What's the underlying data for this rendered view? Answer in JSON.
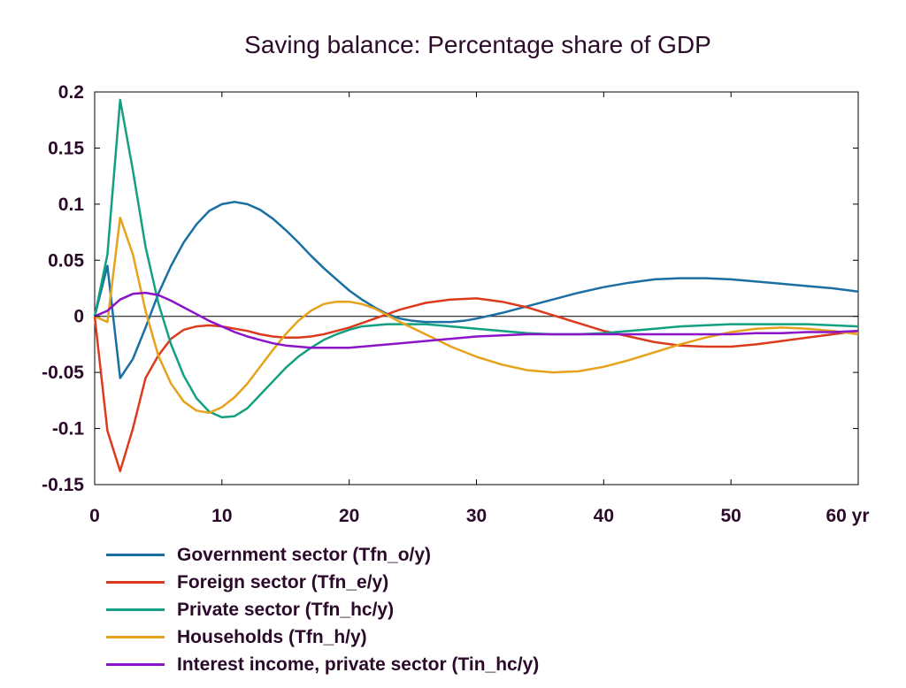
{
  "chart_data": {
    "type": "line",
    "title": "Saving balance: Percentage share of GDP",
    "xlabel": "",
    "ylabel": "",
    "xlim": [
      0,
      60
    ],
    "ylim": [
      -0.15,
      0.2
    ],
    "xticks": [
      0,
      10,
      20,
      30,
      40,
      50,
      60
    ],
    "xtick_labels": [
      "0",
      "10",
      "20",
      "30",
      "40",
      "50",
      "60 yr"
    ],
    "yticks": [
      0.2,
      0.15,
      0.1,
      0.05,
      0,
      -0.05,
      -0.1,
      -0.15
    ],
    "ytick_labels": [
      "0.2",
      "0.15",
      "0.1",
      "0.05",
      "0",
      "-0.05",
      "-0.1",
      "-0.15"
    ],
    "zero_line": true,
    "grid": false,
    "legend_position": "bottom-left",
    "series": [
      {
        "name": "Government sector (Tfn_o/y)",
        "color": "#1a6fa3",
        "x": [
          0,
          1,
          2,
          3,
          4,
          5,
          6,
          7,
          8,
          9,
          10,
          11,
          12,
          13,
          14,
          15,
          16,
          17,
          18,
          19,
          20,
          21,
          22,
          23,
          24,
          25,
          26,
          27,
          28,
          29,
          30,
          32,
          34,
          36,
          38,
          40,
          42,
          44,
          46,
          48,
          50,
          52,
          54,
          56,
          58,
          60
        ],
        "values": [
          0,
          0.045,
          -0.055,
          -0.038,
          -0.01,
          0.02,
          0.045,
          0.066,
          0.082,
          0.094,
          0.1,
          0.102,
          0.1,
          0.095,
          0.087,
          0.077,
          0.066,
          0.054,
          0.043,
          0.033,
          0.023,
          0.015,
          0.008,
          0.002,
          -0.002,
          -0.004,
          -0.005,
          -0.005,
          -0.005,
          -0.004,
          -0.002,
          0.003,
          0.009,
          0.015,
          0.021,
          0.026,
          0.03,
          0.033,
          0.034,
          0.034,
          0.033,
          0.031,
          0.029,
          0.027,
          0.025,
          0.022
        ]
      },
      {
        "name": "Foreign sector (Tfn_e/y)",
        "color": "#dc3a1d",
        "x": [
          0,
          1,
          2,
          3,
          4,
          5,
          6,
          7,
          8,
          9,
          10,
          11,
          12,
          13,
          14,
          15,
          16,
          17,
          18,
          19,
          20,
          22,
          24,
          26,
          28,
          30,
          32,
          34,
          36,
          38,
          40,
          42,
          44,
          46,
          48,
          50,
          52,
          54,
          56,
          58,
          60
        ],
        "values": [
          0,
          -0.102,
          -0.138,
          -0.1,
          -0.055,
          -0.035,
          -0.02,
          -0.012,
          -0.009,
          -0.008,
          -0.009,
          -0.011,
          -0.013,
          -0.016,
          -0.018,
          -0.019,
          -0.019,
          -0.018,
          -0.016,
          -0.013,
          -0.01,
          -0.002,
          0.006,
          0.012,
          0.015,
          0.016,
          0.013,
          0.008,
          0.001,
          -0.006,
          -0.013,
          -0.018,
          -0.023,
          -0.026,
          -0.027,
          -0.027,
          -0.025,
          -0.022,
          -0.019,
          -0.016,
          -0.013
        ]
      },
      {
        "name": "Private sector (Tfn_hc/y)",
        "color": "#13a080",
        "x": [
          0,
          1,
          2,
          3,
          4,
          5,
          6,
          7,
          8,
          9,
          10,
          11,
          12,
          13,
          14,
          15,
          16,
          17,
          18,
          19,
          20,
          21,
          22,
          23,
          24,
          25,
          26,
          28,
          30,
          32,
          34,
          36,
          38,
          40,
          42,
          44,
          46,
          48,
          50,
          52,
          54,
          56,
          58,
          60
        ],
        "values": [
          0,
          0.055,
          0.193,
          0.13,
          0.062,
          0.012,
          -0.025,
          -0.053,
          -0.073,
          -0.085,
          -0.09,
          -0.089,
          -0.082,
          -0.07,
          -0.058,
          -0.046,
          -0.036,
          -0.028,
          -0.021,
          -0.016,
          -0.012,
          -0.009,
          -0.008,
          -0.007,
          -0.007,
          -0.007,
          -0.007,
          -0.009,
          -0.011,
          -0.013,
          -0.015,
          -0.016,
          -0.016,
          -0.015,
          -0.013,
          -0.011,
          -0.009,
          -0.008,
          -0.007,
          -0.007,
          -0.007,
          -0.007,
          -0.008,
          -0.009
        ]
      },
      {
        "name": "Households (Tfn_h/y)",
        "color": "#e6a21a",
        "x": [
          0,
          1,
          2,
          3,
          4,
          5,
          6,
          7,
          8,
          9,
          10,
          11,
          12,
          13,
          14,
          15,
          16,
          17,
          18,
          19,
          20,
          21,
          22,
          23,
          24,
          26,
          28,
          30,
          32,
          34,
          36,
          38,
          40,
          42,
          44,
          46,
          48,
          50,
          52,
          54,
          56,
          58,
          60
        ],
        "values": [
          0,
          -0.005,
          0.088,
          0.055,
          0.005,
          -0.035,
          -0.06,
          -0.076,
          -0.084,
          -0.086,
          -0.081,
          -0.072,
          -0.06,
          -0.045,
          -0.03,
          -0.016,
          -0.004,
          0.005,
          0.011,
          0.013,
          0.013,
          0.011,
          0.007,
          0.001,
          -0.005,
          -0.016,
          -0.027,
          -0.036,
          -0.043,
          -0.048,
          -0.05,
          -0.049,
          -0.045,
          -0.039,
          -0.032,
          -0.025,
          -0.019,
          -0.014,
          -0.011,
          -0.01,
          -0.011,
          -0.013,
          -0.016
        ]
      },
      {
        "name": "Interest income, private sector (Tin_hc/y)",
        "color": "#8b13c8",
        "x": [
          0,
          1,
          2,
          3,
          4,
          5,
          6,
          7,
          8,
          9,
          10,
          11,
          12,
          13,
          14,
          15,
          16,
          17,
          18,
          19,
          20,
          22,
          24,
          26,
          28,
          30,
          32,
          34,
          36,
          38,
          40,
          42,
          44,
          46,
          48,
          50,
          52,
          54,
          56,
          58,
          60
        ],
        "values": [
          0,
          0.005,
          0.015,
          0.02,
          0.021,
          0.019,
          0.014,
          0.008,
          0.002,
          -0.004,
          -0.009,
          -0.014,
          -0.018,
          -0.021,
          -0.024,
          -0.026,
          -0.027,
          -0.028,
          -0.028,
          -0.028,
          -0.028,
          -0.026,
          -0.024,
          -0.022,
          -0.02,
          -0.018,
          -0.017,
          -0.016,
          -0.016,
          -0.016,
          -0.016,
          -0.016,
          -0.016,
          -0.016,
          -0.016,
          -0.016,
          -0.015,
          -0.015,
          -0.014,
          -0.014,
          -0.013
        ]
      }
    ]
  }
}
